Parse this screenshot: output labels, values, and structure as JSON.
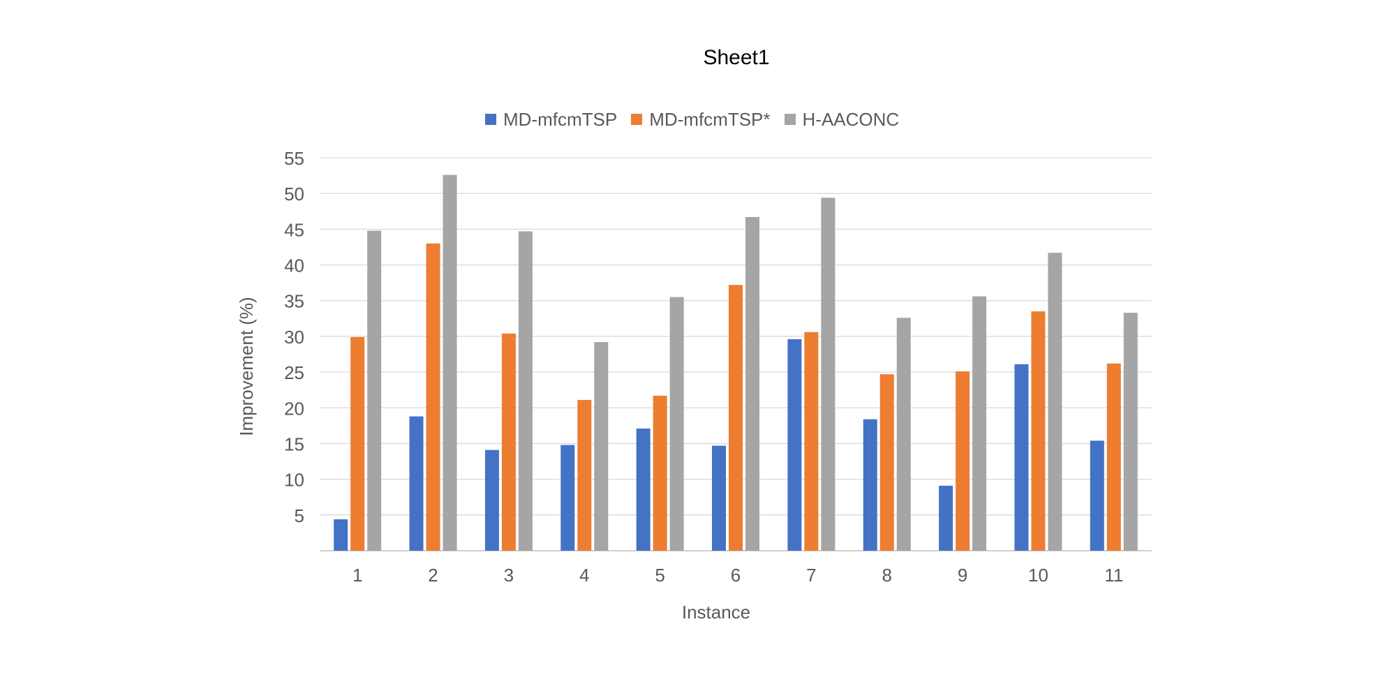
{
  "chart_data": {
    "type": "bar",
    "title": "Sheet1",
    "xlabel": "Instance",
    "ylabel": "Improvement (%)",
    "categories": [
      "1",
      "2",
      "3",
      "4",
      "5",
      "6",
      "7",
      "8",
      "9",
      "10",
      "11"
    ],
    "series": [
      {
        "name": "MD-mfcmTSP",
        "color": "#4472C4",
        "values": [
          4.4,
          18.8,
          14.1,
          14.8,
          17.1,
          14.7,
          29.6,
          18.4,
          9.1,
          26.1,
          15.4
        ]
      },
      {
        "name": "MD-mfcmTSP*",
        "color": "#ED7D31",
        "values": [
          29.9,
          43.0,
          30.4,
          21.1,
          21.7,
          37.2,
          30.6,
          24.7,
          25.1,
          33.5,
          26.2
        ]
      },
      {
        "name": "H-AACONC",
        "color": "#A5A5A5",
        "values": [
          44.8,
          52.6,
          44.7,
          29.2,
          35.5,
          46.7,
          49.4,
          32.6,
          35.6,
          41.7,
          33.3
        ]
      }
    ],
    "ylim": [
      0,
      55
    ],
    "yticks": [
      5,
      10,
      15,
      20,
      25,
      30,
      35,
      40,
      45,
      50,
      55
    ],
    "grid": true,
    "legend_position": "top"
  }
}
